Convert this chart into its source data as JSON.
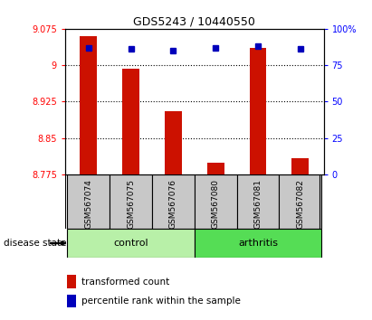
{
  "title": "GDS5243 / 10440550",
  "samples": [
    "GSM567074",
    "GSM567075",
    "GSM567076",
    "GSM567080",
    "GSM567081",
    "GSM567082"
  ],
  "red_values": [
    9.06,
    8.993,
    8.905,
    8.8,
    9.035,
    8.808
  ],
  "blue_values": [
    87,
    86,
    85,
    87,
    88,
    86
  ],
  "ymin": 8.775,
  "ymax": 9.075,
  "y2min": 0,
  "y2max": 100,
  "yticks": [
    8.775,
    8.85,
    8.925,
    9.0,
    9.075
  ],
  "ytick_labels": [
    "8.775",
    "8.85",
    "8.925",
    "9",
    "9.075"
  ],
  "y2ticks": [
    0,
    25,
    50,
    75,
    100
  ],
  "y2tick_labels": [
    "0",
    "25",
    "50",
    "75",
    "100%"
  ],
  "hlines": [
    9.0,
    8.925,
    8.85
  ],
  "control_color": "#b8f0a8",
  "arthritis_color": "#55dd55",
  "label_bg_color": "#c8c8c8",
  "bar_color": "#cc1100",
  "dot_color": "#0000bb",
  "disease_label": "disease state",
  "legend_red": "transformed count",
  "legend_blue": "percentile rank within the sample",
  "bar_width": 0.4
}
